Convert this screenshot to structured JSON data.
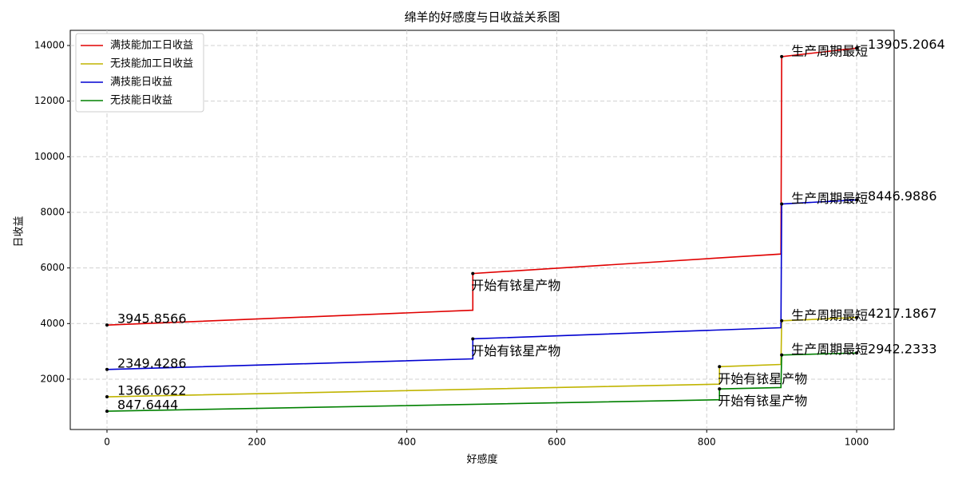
{
  "chart_data": {
    "type": "line",
    "title": "绵羊的好感度与日收益关系图",
    "x_label": "好感度",
    "y_label": "日收益",
    "xlim": [
      -49,
      1050
    ],
    "ylim": [
      190,
      14545
    ],
    "xticks": [
      0,
      200,
      400,
      600,
      800,
      1000
    ],
    "yticks": [
      2000,
      4000,
      6000,
      8000,
      10000,
      12000,
      14000
    ],
    "grid": true,
    "legend": "upper left",
    "series": [
      {
        "name": "满技能加工日收益",
        "color": "#e00000",
        "x": [
          0,
          488,
          488,
          899,
          900,
          1000
        ],
        "values": [
          3945.8566,
          4480,
          5800,
          6500,
          13600,
          13905.2064
        ]
      },
      {
        "name": "无技能加工日收益",
        "color": "#c0b400",
        "x": [
          0,
          817,
          817,
          899,
          900,
          1000
        ],
        "values": [
          1366.0622,
          1820,
          2450,
          2530,
          4100,
          4217.1867
        ]
      },
      {
        "name": "满技能日收益",
        "color": "#0000d0",
        "x": [
          0,
          488,
          488,
          899,
          900,
          1000
        ],
        "values": [
          2349.4286,
          2730,
          3450,
          3850,
          8300,
          8446.9886
        ]
      },
      {
        "name": "无技能日收益",
        "color": "#008000",
        "x": [
          0,
          817,
          817,
          899,
          900,
          1000
        ],
        "values": [
          847.6444,
          1260,
          1650,
          1700,
          2870,
          2942.2333
        ]
      }
    ],
    "annotations": [
      {
        "text": "3945.8566",
        "x": 0,
        "y": 3945.8566
      },
      {
        "text": "2349.4286",
        "x": 0,
        "y": 2349.4286
      },
      {
        "text": "1366.0622",
        "x": 0,
        "y": 1366.0622
      },
      {
        "text": "847.6444",
        "x": 0,
        "y": 847.6444
      },
      {
        "text": "开始有铱星产物",
        "x": 488,
        "y": 5800
      },
      {
        "text": "开始有铱星产物",
        "x": 488,
        "y": 3450
      },
      {
        "text": "开始有铱星产物",
        "x": 817,
        "y": 2450
      },
      {
        "text": "开始有铱星产物",
        "x": 817,
        "y": 1650
      },
      {
        "text": "生产周期最短",
        "x": 900,
        "y": 13600
      },
      {
        "text": "生产周期最短",
        "x": 900,
        "y": 8300
      },
      {
        "text": "生产周期最短",
        "x": 900,
        "y": 4100
      },
      {
        "text": "生产周期最短",
        "x": 900,
        "y": 2870
      },
      {
        "text": "13905.2064",
        "x": 1000,
        "y": 13905.2064
      },
      {
        "text": "8446.9886",
        "x": 1000,
        "y": 8446.9886
      },
      {
        "text": "4217.1867",
        "x": 1000,
        "y": 4217.1867
      },
      {
        "text": "2942.2333",
        "x": 1000,
        "y": 2942.2333
      }
    ]
  }
}
